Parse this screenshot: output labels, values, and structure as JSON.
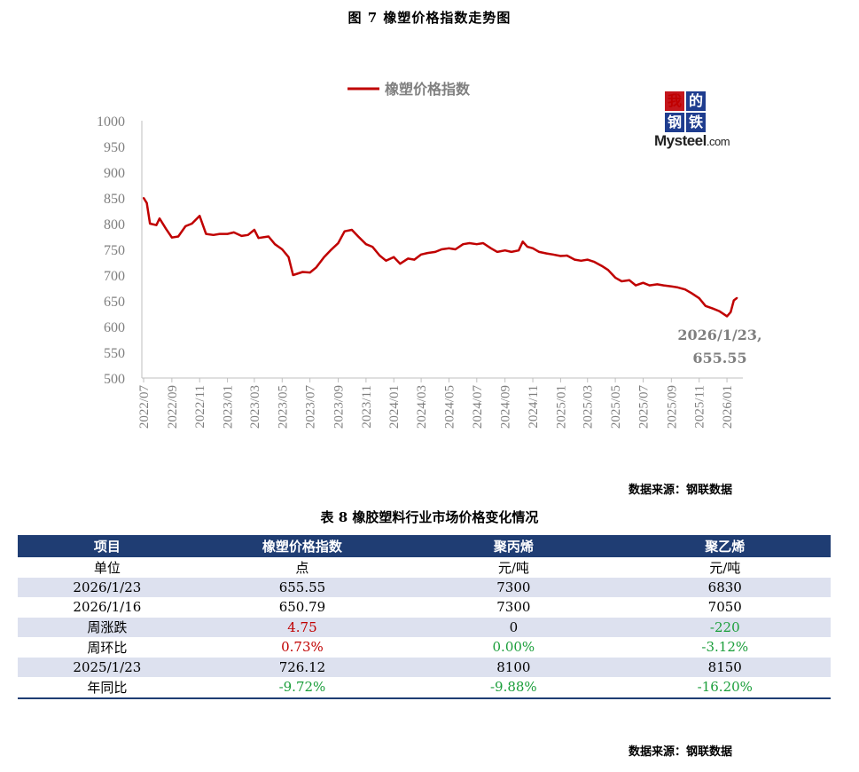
{
  "figure_title": "图 7    橡塑价格指数走势图",
  "chart_data": {
    "type": "line",
    "title": "",
    "legend": [
      "橡塑价格指数"
    ],
    "legend_position": "top-center",
    "series_color": "#c00000",
    "ylim": [
      500,
      1000
    ],
    "y_ticks": [
      "1000",
      "950",
      "900",
      "850",
      "800",
      "750",
      "700",
      "650",
      "600",
      "550",
      "500"
    ],
    "x_ticks": [
      "2022/07",
      "2022/09",
      "2022/11",
      "2023/01",
      "2023/03",
      "2023/05",
      "2023/07",
      "2023/09",
      "2023/11",
      "2024/01",
      "2024/03",
      "2024/05",
      "2024/07",
      "2024/09",
      "2024/11",
      "2025/01",
      "2025/03",
      "2025/05",
      "2025/07",
      "2025/09",
      "2025/11",
      "2026/01"
    ],
    "series": [
      {
        "name": "橡塑价格指数",
        "points": [
          [
            "2022/07/01",
            850
          ],
          [
            "2022/07/08",
            840
          ],
          [
            "2022/07/15",
            800
          ],
          [
            "2022/07/29",
            797
          ],
          [
            "2022/08/05",
            810
          ],
          [
            "2022/08/19",
            790
          ],
          [
            "2022/09/01",
            773
          ],
          [
            "2022/09/15",
            775
          ],
          [
            "2022/10/01",
            795
          ],
          [
            "2022/10/15",
            800
          ],
          [
            "2022/11/01",
            815
          ],
          [
            "2022/11/15",
            780
          ],
          [
            "2022/12/01",
            778
          ],
          [
            "2022/12/15",
            780
          ],
          [
            "2023/01/01",
            780
          ],
          [
            "2023/01/15",
            783
          ],
          [
            "2023/02/01",
            776
          ],
          [
            "2023/02/15",
            778
          ],
          [
            "2023/03/01",
            788
          ],
          [
            "2023/03/10",
            772
          ],
          [
            "2023/04/01",
            775
          ],
          [
            "2023/04/15",
            760
          ],
          [
            "2023/05/01",
            750
          ],
          [
            "2023/05/15",
            735
          ],
          [
            "2023/05/25",
            700
          ],
          [
            "2023/06/15",
            706
          ],
          [
            "2023/07/01",
            705
          ],
          [
            "2023/07/15",
            715
          ],
          [
            "2023/08/01",
            735
          ],
          [
            "2023/08/15",
            748
          ],
          [
            "2023/09/01",
            762
          ],
          [
            "2023/09/15",
            785
          ],
          [
            "2023/10/01",
            788
          ],
          [
            "2023/10/15",
            775
          ],
          [
            "2023/11/01",
            760
          ],
          [
            "2023/11/15",
            755
          ],
          [
            "2023/12/01",
            738
          ],
          [
            "2023/12/15",
            728
          ],
          [
            "2024/01/01",
            735
          ],
          [
            "2024/01/15",
            722
          ],
          [
            "2024/02/01",
            732
          ],
          [
            "2024/02/15",
            730
          ],
          [
            "2024/03/01",
            740
          ],
          [
            "2024/03/15",
            743
          ],
          [
            "2024/04/01",
            745
          ],
          [
            "2024/04/15",
            750
          ],
          [
            "2024/05/01",
            752
          ],
          [
            "2024/05/15",
            750
          ],
          [
            "2024/06/01",
            760
          ],
          [
            "2024/06/15",
            762
          ],
          [
            "2024/07/01",
            760
          ],
          [
            "2024/07/15",
            762
          ],
          [
            "2024/08/01",
            752
          ],
          [
            "2024/08/15",
            745
          ],
          [
            "2024/09/01",
            748
          ],
          [
            "2024/09/15",
            745
          ],
          [
            "2024/10/01",
            748
          ],
          [
            "2024/10/10",
            765
          ],
          [
            "2024/10/20",
            755
          ],
          [
            "2024/11/01",
            752
          ],
          [
            "2024/11/15",
            745
          ],
          [
            "2024/12/01",
            742
          ],
          [
            "2024/12/15",
            740
          ],
          [
            "2025/01/01",
            737
          ],
          [
            "2025/01/15",
            738
          ],
          [
            "2025/02/01",
            730
          ],
          [
            "2025/02/15",
            728
          ],
          [
            "2025/03/01",
            730
          ],
          [
            "2025/03/15",
            726
          ],
          [
            "2025/04/01",
            718
          ],
          [
            "2025/04/15",
            710
          ],
          [
            "2025/05/01",
            695
          ],
          [
            "2025/05/15",
            688
          ],
          [
            "2025/06/01",
            690
          ],
          [
            "2025/06/15",
            680
          ],
          [
            "2025/07/01",
            685
          ],
          [
            "2025/07/15",
            680
          ],
          [
            "2025/08/01",
            682
          ],
          [
            "2025/08/15",
            680
          ],
          [
            "2025/09/01",
            678
          ],
          [
            "2025/09/15",
            676
          ],
          [
            "2025/10/01",
            672
          ],
          [
            "2025/10/15",
            665
          ],
          [
            "2025/11/01",
            655
          ],
          [
            "2025/11/15",
            640
          ],
          [
            "2025/12/01",
            635
          ],
          [
            "2025/12/15",
            630
          ],
          [
            "2026/01/01",
            620
          ],
          [
            "2026/01/09",
            628
          ],
          [
            "2026/01/16",
            650.79
          ],
          [
            "2026/01/23",
            655.55
          ]
        ]
      }
    ],
    "annotation": [
      "2026/1/23,",
      "655.55"
    ]
  },
  "logo": {
    "chars": [
      "我",
      "的",
      "钢",
      "铁"
    ],
    "text": "Mysteel",
    "suffix": ".com"
  },
  "source_text": "数据来源：钢联数据",
  "table_title": "表 8 橡胶塑料行业市场价格变化情况",
  "table": {
    "headers": [
      "项目",
      "橡塑价格指数",
      "聚丙烯",
      "聚乙烯"
    ],
    "rows": [
      {
        "cells": [
          "单位",
          "点",
          "元/吨",
          "元/吨"
        ],
        "colors": [
          "",
          "",
          "",
          ""
        ]
      },
      {
        "cells": [
          "2026/1/23",
          "655.55",
          "7300",
          "6830"
        ],
        "colors": [
          "",
          "",
          "",
          ""
        ]
      },
      {
        "cells": [
          "2026/1/16",
          "650.79",
          "7300",
          "7050"
        ],
        "colors": [
          "",
          "",
          "",
          ""
        ]
      },
      {
        "cells": [
          "周涨跌",
          "4.75",
          "0",
          "-220"
        ],
        "colors": [
          "",
          "red",
          "",
          "green"
        ]
      },
      {
        "cells": [
          "周环比",
          "0.73%",
          "0.00%",
          "-3.12%"
        ],
        "colors": [
          "",
          "red",
          "green",
          "green"
        ]
      },
      {
        "cells": [
          "2025/1/23",
          "726.12",
          "8100",
          "8150"
        ],
        "colors": [
          "",
          "",
          "",
          ""
        ]
      },
      {
        "cells": [
          "年同比",
          "-9.72%",
          "-9.88%",
          "-16.20%"
        ],
        "colors": [
          "",
          "green",
          "green",
          "green"
        ]
      }
    ]
  },
  "source_text_2": "数据来源：钢联数据"
}
